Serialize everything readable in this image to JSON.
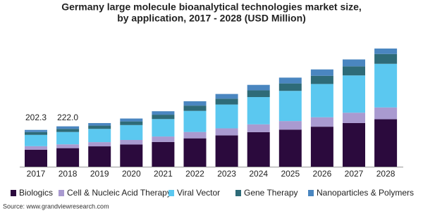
{
  "chart_data": {
    "type": "stacked-bar",
    "title": "Germany large molecule bioanalytical technologies market size,",
    "subtitle": "by application, 2017 - 2028 (USD Million)",
    "source": "Source: www.grandviewresearch.com",
    "categories": [
      "2017",
      "2018",
      "2019",
      "2020",
      "2021",
      "2022",
      "2023",
      "2024",
      "2025",
      "2026",
      "2027",
      "2028"
    ],
    "series": [
      {
        "name": "Biologics",
        "color": "#2b0a3d",
        "values": [
          93.5,
          102,
          112,
          122,
          136,
          156,
          172,
          190,
          204,
          220,
          240,
          261
        ]
      },
      {
        "name": "Cell & Nucleic Acid Therapy",
        "color": "#a99ad0",
        "values": [
          19.5,
          21,
          23,
          25,
          30,
          35,
          39,
          43,
          47,
          52,
          57,
          65
        ]
      },
      {
        "name": "Viral Vector",
        "color": "#5bc8f0",
        "values": [
          62,
          68,
          73,
          82,
          96,
          116,
          131,
          150,
          166,
          183,
          205,
          240
        ]
      },
      {
        "name": "Gene Therapy",
        "color": "#2e6b78",
        "values": [
          15.5,
          17,
          18,
          20,
          24,
          29,
          32,
          37,
          41,
          45,
          50,
          54
        ]
      },
      {
        "name": "Nanoparticles & Polymers",
        "color": "#4a86c0",
        "values": [
          11.8,
          14,
          14,
          16,
          19,
          24,
          26,
          30,
          32,
          35,
          38,
          30
        ]
      }
    ],
    "totals": [
      202.3,
      222.0,
      null,
      null,
      null,
      null,
      null,
      null,
      null,
      null,
      null,
      null
    ],
    "total_labels": [
      "202.3",
      "222.0",
      null,
      null,
      null,
      null,
      null,
      null,
      null,
      null,
      null,
      null
    ]
  }
}
